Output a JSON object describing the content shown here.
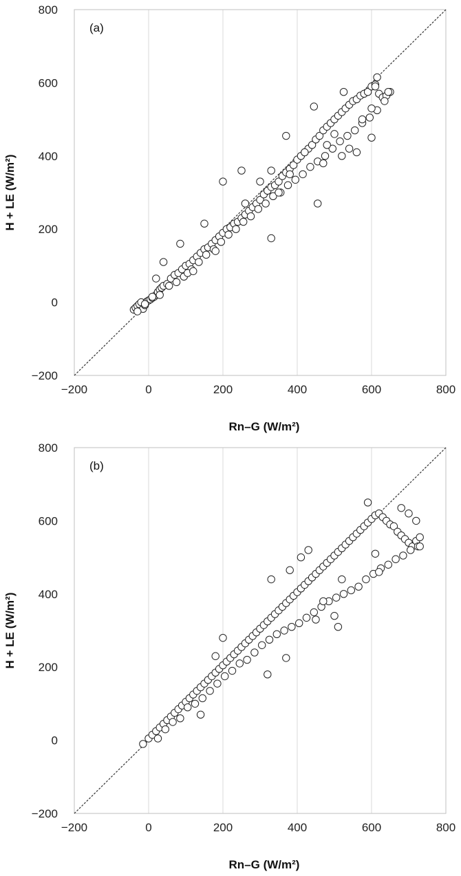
{
  "chart_data": [
    {
      "type": "scatter",
      "panel_label": "(a)",
      "xlabel": "Rn–G (W/m²)",
      "ylabel": "H + LE (W/m²)",
      "xlim": [
        -200,
        800
      ],
      "ylim": [
        -200,
        800
      ],
      "xticks": [
        "-200",
        "0",
        "200",
        "400",
        "600",
        "800"
      ],
      "yticks": [
        "-200",
        "0",
        "200",
        "400",
        "600",
        "800"
      ],
      "grid": "vertical",
      "reference_line": "1:1",
      "series": [
        {
          "marker": "open-circle",
          "x": [
            -40,
            -35,
            -30,
            -25,
            -20,
            -15,
            -10,
            -5,
            0,
            5,
            10,
            15,
            20,
            25,
            30,
            35,
            40,
            50,
            60,
            70,
            80,
            90,
            100,
            110,
            120,
            130,
            140,
            150,
            160,
            170,
            180,
            190,
            200,
            210,
            220,
            230,
            240,
            250,
            260,
            270,
            280,
            290,
            300,
            310,
            320,
            330,
            340,
            350,
            360,
            370,
            380,
            390,
            400,
            410,
            420,
            430,
            440,
            450,
            460,
            470,
            480,
            490,
            500,
            510,
            520,
            530,
            540,
            550,
            560,
            570,
            580,
            590,
            600,
            610,
            620,
            630,
            640,
            650,
            -30,
            -10,
            10,
            30,
            55,
            75,
            95,
            115,
            135,
            155,
            175,
            195,
            215,
            235,
            255,
            275,
            295,
            315,
            335,
            355,
            375,
            395,
            415,
            435,
            455,
            475,
            495,
            515,
            535,
            555,
            575,
            595,
            615,
            635,
            20,
            40,
            85,
            105,
            150,
            200,
            250,
            330,
            370,
            445,
            455,
            525,
            560,
            600,
            610,
            615,
            300,
            350,
            380,
            420,
            480,
            500,
            540,
            575,
            600,
            645,
            120,
            180,
            260,
            330,
            470,
            520
          ],
          "y": [
            -20,
            -15,
            -10,
            -5,
            0,
            -18,
            -8,
            2,
            5,
            8,
            12,
            15,
            20,
            28,
            35,
            40,
            45,
            50,
            65,
            75,
            80,
            90,
            100,
            105,
            115,
            125,
            135,
            145,
            150,
            160,
            170,
            180,
            190,
            200,
            205,
            215,
            220,
            230,
            240,
            250,
            260,
            270,
            280,
            295,
            305,
            315,
            320,
            330,
            345,
            355,
            365,
            375,
            390,
            400,
            410,
            420,
            430,
            445,
            455,
            470,
            480,
            490,
            500,
            510,
            520,
            530,
            540,
            550,
            555,
            565,
            570,
            575,
            590,
            595,
            570,
            560,
            565,
            575,
            -25,
            -5,
            15,
            20,
            45,
            55,
            70,
            90,
            110,
            130,
            145,
            165,
            185,
            200,
            220,
            235,
            255,
            270,
            290,
            300,
            320,
            335,
            350,
            370,
            385,
            400,
            420,
            440,
            455,
            470,
            490,
            505,
            525,
            550,
            65,
            110,
            160,
            80,
            215,
            330,
            360,
            175,
            455,
            535,
            270,
            575,
            410,
            530,
            590,
            615,
            330,
            300,
            350,
            410,
            430,
            460,
            420,
            500,
            450,
            575,
            85,
            140,
            270,
            360,
            380,
            400
          ]
        }
      ]
    },
    {
      "type": "scatter",
      "panel_label": "(b)",
      "xlabel": "Rn–G (W/m²)",
      "ylabel": "H + LE (W/m²)",
      "xlim": [
        -200,
        800
      ],
      "ylim": [
        -200,
        800
      ],
      "xticks": [
        "-200",
        "0",
        "200",
        "400",
        "600",
        "800"
      ],
      "yticks": [
        "-200",
        "0",
        "200",
        "400",
        "600",
        "800"
      ],
      "grid": "vertical",
      "reference_line": "1:1",
      "series": [
        {
          "marker": "open-circle",
          "x": [
            -15,
            0,
            10,
            20,
            30,
            40,
            50,
            60,
            70,
            80,
            90,
            100,
            110,
            120,
            130,
            140,
            150,
            160,
            170,
            180,
            190,
            200,
            210,
            220,
            230,
            240,
            250,
            260,
            270,
            280,
            290,
            300,
            310,
            320,
            330,
            340,
            350,
            360,
            370,
            380,
            390,
            400,
            410,
            420,
            430,
            440,
            450,
            460,
            470,
            480,
            490,
            500,
            510,
            520,
            530,
            540,
            550,
            560,
            570,
            580,
            590,
            600,
            610,
            620,
            630,
            640,
            650,
            660,
            670,
            680,
            690,
            700,
            710,
            720,
            730,
            25,
            45,
            65,
            85,
            105,
            125,
            145,
            165,
            185,
            205,
            225,
            245,
            265,
            285,
            305,
            325,
            345,
            365,
            385,
            405,
            425,
            445,
            465,
            485,
            505,
            525,
            545,
            565,
            585,
            605,
            625,
            645,
            665,
            685,
            705,
            725,
            140,
            180,
            200,
            320,
            330,
            370,
            380,
            410,
            430,
            450,
            470,
            500,
            510,
            520,
            590,
            610,
            620,
            680,
            700,
            720,
            730
          ],
          "y": [
            -10,
            5,
            15,
            25,
            35,
            45,
            55,
            65,
            75,
            85,
            95,
            105,
            115,
            125,
            135,
            145,
            155,
            165,
            175,
            185,
            195,
            205,
            215,
            225,
            235,
            245,
            255,
            265,
            275,
            285,
            295,
            305,
            315,
            325,
            335,
            345,
            355,
            365,
            375,
            385,
            395,
            405,
            415,
            425,
            435,
            445,
            455,
            465,
            475,
            485,
            495,
            505,
            515,
            525,
            535,
            545,
            555,
            565,
            575,
            585,
            595,
            605,
            615,
            620,
            610,
            600,
            590,
            585,
            570,
            560,
            550,
            540,
            530,
            545,
            555,
            5,
            30,
            50,
            60,
            90,
            100,
            115,
            135,
            155,
            175,
            190,
            210,
            220,
            240,
            260,
            275,
            290,
            300,
            310,
            320,
            335,
            350,
            365,
            380,
            390,
            400,
            410,
            420,
            440,
            455,
            470,
            480,
            495,
            505,
            520,
            530,
            70,
            230,
            280,
            180,
            440,
            225,
            465,
            500,
            520,
            330,
            380,
            340,
            310,
            440,
            650,
            510,
            460,
            635,
            620,
            600,
            530
          ]
        }
      ]
    }
  ]
}
